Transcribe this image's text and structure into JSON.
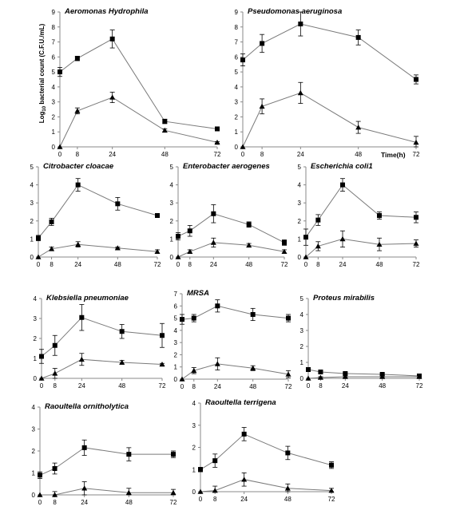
{
  "figure": {
    "ylabel_prefix": "Log",
    "ylabel_sub": "10",
    "ylabel_suffix": " bacterial count (C.F.U./mL)",
    "xunit": "Time(h)"
  },
  "chart_data": [
    {
      "type": "line",
      "title": "Aeromonas Hydrophila",
      "x": [
        0,
        8,
        24,
        48,
        72
      ],
      "xticks": [
        "0",
        "8",
        "24",
        "48",
        "72"
      ],
      "ylim": [
        0,
        9
      ],
      "yticks": [
        0,
        1,
        2,
        3,
        4,
        5,
        6,
        7,
        8,
        9
      ],
      "series": [
        {
          "marker": "square",
          "values": [
            5.0,
            5.9,
            7.2,
            1.7,
            1.2
          ],
          "errors": [
            0.3,
            0.15,
            0.6,
            0.15,
            0.05
          ]
        },
        {
          "marker": "triangle",
          "values": [
            0.0,
            2.4,
            3.3,
            1.1,
            0.3
          ],
          "errors": [
            0.0,
            0.2,
            0.35,
            0.1,
            0.05
          ]
        }
      ]
    },
    {
      "type": "line",
      "title": "Pseudomonas aeruginosa",
      "x": [
        0,
        8,
        24,
        48,
        72
      ],
      "xticks": [
        "0",
        "8",
        "24",
        "48",
        "72"
      ],
      "ylim": [
        0,
        9
      ],
      "yticks": [
        0,
        1,
        2,
        3,
        4,
        5,
        6,
        7,
        8,
        9
      ],
      "series": [
        {
          "marker": "square",
          "values": [
            5.8,
            6.9,
            8.2,
            7.3,
            4.5
          ],
          "errors": [
            0.4,
            0.6,
            0.8,
            0.5,
            0.3
          ]
        },
        {
          "marker": "triangle",
          "values": [
            0.0,
            2.7,
            3.6,
            1.3,
            0.3
          ],
          "errors": [
            0.0,
            0.5,
            0.7,
            0.4,
            0.4
          ]
        }
      ]
    },
    {
      "type": "line",
      "title": "Citrobacter cloacae",
      "x": [
        0,
        8,
        24,
        48,
        72
      ],
      "xticks": [
        "0",
        "8",
        "24",
        "48",
        "72"
      ],
      "ylim": [
        0,
        5
      ],
      "yticks": [
        0,
        1,
        2,
        3,
        4,
        5
      ],
      "series": [
        {
          "marker": "square",
          "values": [
            1.05,
            1.95,
            4.0,
            2.95,
            2.3
          ],
          "errors": [
            0.15,
            0.2,
            0.35,
            0.35,
            0.1
          ]
        },
        {
          "marker": "triangle",
          "values": [
            0.0,
            0.45,
            0.7,
            0.5,
            0.3
          ],
          "errors": [
            0.0,
            0.1,
            0.15,
            0.05,
            0.1
          ]
        }
      ]
    },
    {
      "type": "line",
      "title": "Enterobacter aerogenes",
      "x": [
        0,
        8,
        24,
        48,
        72
      ],
      "xticks": [
        "0",
        "8",
        "24",
        "48",
        "72"
      ],
      "ylim": [
        0,
        5
      ],
      "yticks": [
        0,
        1,
        2,
        3,
        4,
        5
      ],
      "series": [
        {
          "marker": "square",
          "values": [
            1.15,
            1.45,
            2.4,
            1.8,
            0.8
          ],
          "errors": [
            0.2,
            0.3,
            0.5,
            0.15,
            0.15
          ]
        },
        {
          "marker": "triangle",
          "values": [
            0.0,
            0.3,
            0.8,
            0.65,
            0.3
          ],
          "errors": [
            0.0,
            0.1,
            0.25,
            0.1,
            0.1
          ]
        }
      ]
    },
    {
      "type": "line",
      "title": "Escherichia coli1",
      "x": [
        0,
        8,
        24,
        48,
        72
      ],
      "xticks": [
        "0",
        "8",
        "24",
        "48",
        "72"
      ],
      "ylim": [
        0,
        5
      ],
      "yticks": [
        0,
        1,
        2,
        3,
        4,
        5
      ],
      "series": [
        {
          "marker": "square",
          "values": [
            1.1,
            2.05,
            4.0,
            2.3,
            2.2
          ],
          "errors": [
            0.45,
            0.3,
            0.35,
            0.2,
            0.3
          ]
        },
        {
          "marker": "triangle",
          "values": [
            0.0,
            0.6,
            1.0,
            0.7,
            0.75
          ],
          "errors": [
            0.0,
            0.25,
            0.45,
            0.35,
            0.2
          ]
        }
      ]
    },
    {
      "type": "line",
      "title": "Klebsiella pneumoniae",
      "x": [
        0,
        8,
        24,
        48,
        72
      ],
      "xticks": [
        "0",
        "8",
        "24",
        "48",
        "72"
      ],
      "ylim": [
        0,
        4
      ],
      "yticks": [
        0,
        1,
        2,
        3,
        4
      ],
      "series": [
        {
          "marker": "square",
          "values": [
            1.1,
            1.65,
            3.05,
            2.35,
            2.15
          ],
          "errors": [
            0.35,
            0.5,
            0.65,
            0.35,
            0.6
          ]
        },
        {
          "marker": "triangle",
          "values": [
            0.0,
            0.25,
            0.95,
            0.8,
            0.7
          ],
          "errors": [
            0.0,
            0.25,
            0.3,
            0.1,
            0.05
          ]
        }
      ]
    },
    {
      "type": "line",
      "title": "MRSA",
      "x": [
        0,
        8,
        24,
        48,
        72
      ],
      "xticks": [
        "0",
        "8",
        "24",
        "48",
        "72"
      ],
      "ylim": [
        0,
        7
      ],
      "yticks": [
        0,
        1,
        2,
        3,
        4,
        5,
        6,
        7
      ],
      "series": [
        {
          "marker": "square",
          "values": [
            4.9,
            5.0,
            6.0,
            5.3,
            5.0
          ],
          "errors": [
            0.4,
            0.3,
            0.5,
            0.5,
            0.3
          ]
        },
        {
          "marker": "triangle",
          "values": [
            0.0,
            0.7,
            1.25,
            0.9,
            0.4
          ],
          "errors": [
            0.0,
            0.25,
            0.5,
            0.2,
            0.3
          ]
        }
      ]
    },
    {
      "type": "line",
      "title": "Proteus mirabilis",
      "x": [
        0,
        8,
        24,
        48,
        72
      ],
      "xticks": [
        "0",
        "8",
        "24",
        "48",
        "72"
      ],
      "ylim": [
        0,
        5
      ],
      "yticks": [
        0,
        1,
        2,
        3,
        4,
        5
      ],
      "series": [
        {
          "marker": "square",
          "values": [
            0.55,
            0.4,
            0.3,
            0.25,
            0.15
          ],
          "errors": [
            0.05,
            0.05,
            0.05,
            0.05,
            0.05
          ]
        },
        {
          "marker": "triangle",
          "values": [
            0.0,
            0.05,
            0.1,
            0.1,
            0.1
          ],
          "errors": [
            0.0,
            0.05,
            0.05,
            0.05,
            0.05
          ]
        }
      ]
    },
    {
      "type": "line",
      "title": "Raoultella ornitholytica",
      "x": [
        0,
        8,
        24,
        48,
        72
      ],
      "xticks": [
        "0",
        "8",
        "24",
        "48",
        "72"
      ],
      "ylim": [
        0,
        4
      ],
      "yticks": [
        0,
        1,
        2,
        3,
        4
      ],
      "series": [
        {
          "marker": "square",
          "values": [
            0.9,
            1.2,
            2.15,
            1.85,
            1.85
          ],
          "errors": [
            0.15,
            0.25,
            0.35,
            0.3,
            0.15
          ]
        },
        {
          "marker": "triangle",
          "values": [
            0.0,
            0.0,
            0.3,
            0.1,
            0.1
          ],
          "errors": [
            0.0,
            0.15,
            0.3,
            0.2,
            0.15
          ]
        }
      ]
    },
    {
      "type": "line",
      "title": "Raoultella terrigena",
      "x": [
        0,
        8,
        24,
        48,
        72
      ],
      "xticks": [
        "0",
        "8",
        "24",
        "48",
        "72"
      ],
      "ylim": [
        0,
        4
      ],
      "yticks": [
        0,
        1,
        2,
        3,
        4
      ],
      "series": [
        {
          "marker": "square",
          "values": [
            1.0,
            1.4,
            2.6,
            1.75,
            1.2
          ],
          "errors": [
            0.1,
            0.3,
            0.3,
            0.3,
            0.15
          ]
        },
        {
          "marker": "triangle",
          "values": [
            0.0,
            0.05,
            0.55,
            0.15,
            0.05
          ],
          "errors": [
            0.0,
            0.2,
            0.3,
            0.2,
            0.1
          ]
        }
      ]
    }
  ]
}
